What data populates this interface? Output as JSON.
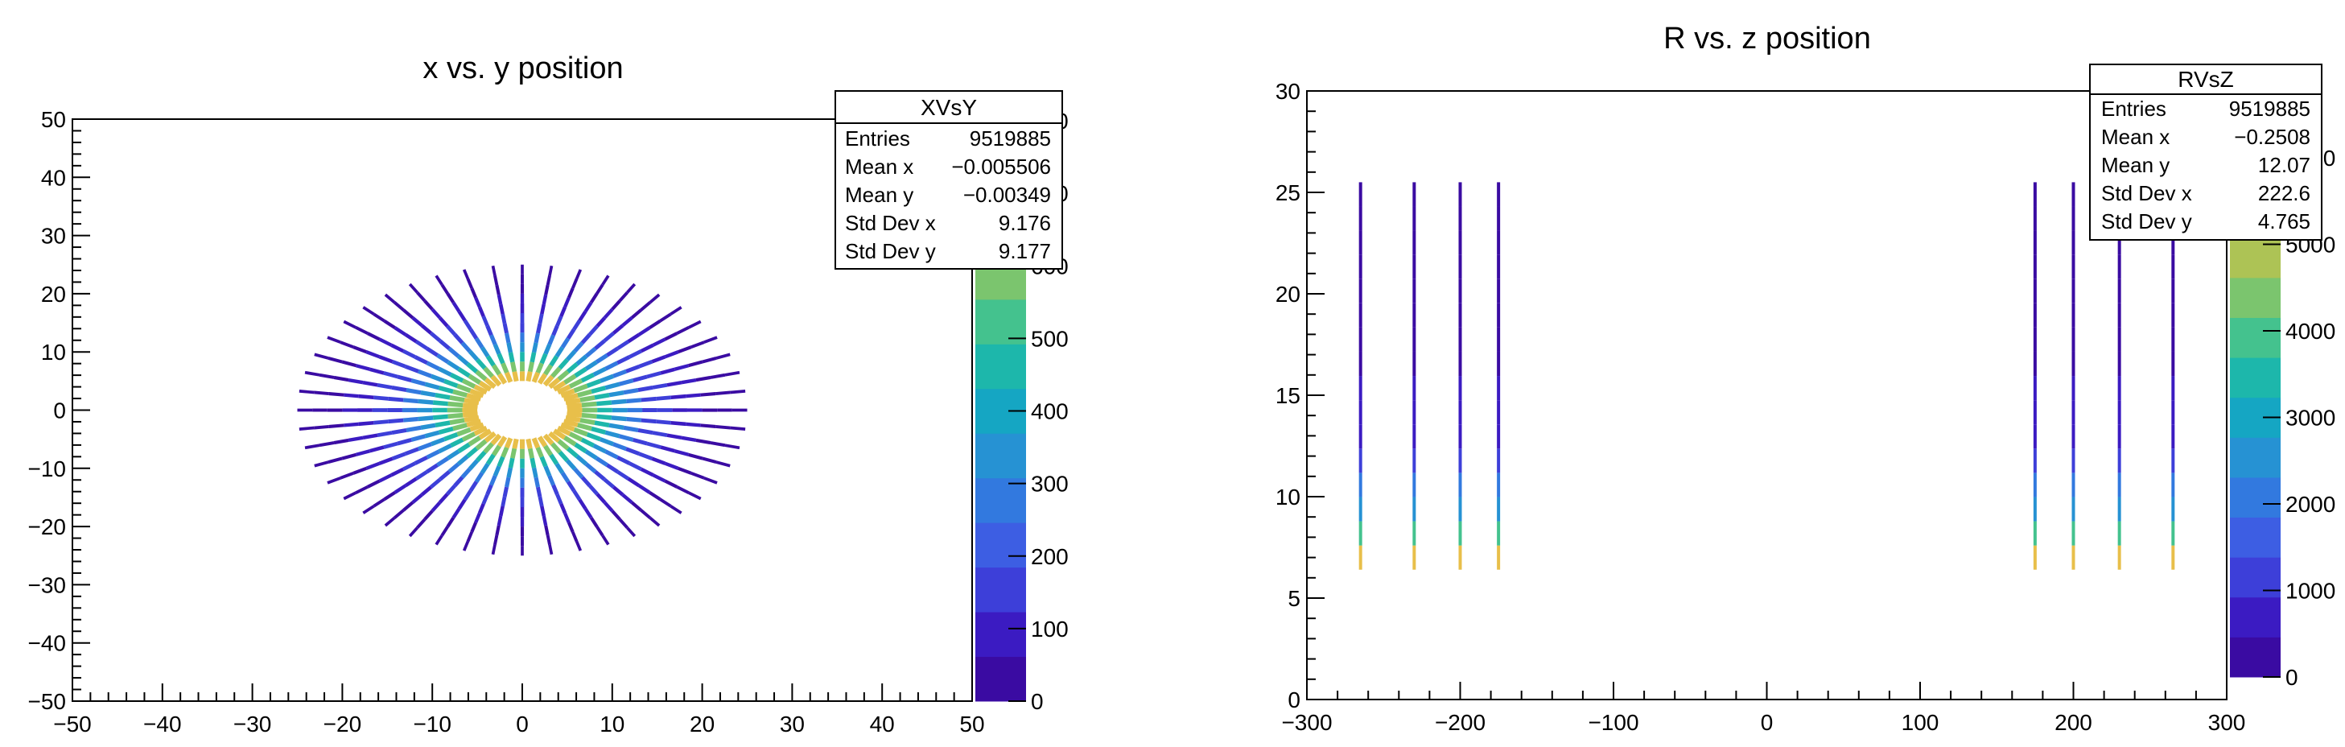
{
  "chart_data": [
    {
      "type": "heatmap",
      "title": "x vs. y position",
      "xlabel": "",
      "ylabel": "",
      "xlim": [
        -50,
        50
      ],
      "ylim": [
        -50,
        50
      ],
      "xticks": [
        -50,
        -40,
        -30,
        -20,
        -10,
        0,
        10,
        20,
        30,
        40,
        50
      ],
      "yticks": [
        -50,
        -40,
        -30,
        -20,
        -10,
        0,
        10,
        20,
        30,
        40,
        50
      ],
      "zticks": [
        0,
        100,
        200,
        300,
        400,
        500,
        600,
        700,
        800
      ],
      "zlim": [
        0,
        800
      ],
      "spokes": 48,
      "r_inner": 5,
      "r_outer": 25,
      "stats": {
        "name": "XVsY",
        "rows": [
          {
            "label": "Entries",
            "value": "9519885"
          },
          {
            "label": "Mean x",
            "value": "−0.005506"
          },
          {
            "label": "Mean y",
            "value": "−0.00349"
          },
          {
            "label": "Std Dev x",
            "value": "9.176"
          },
          {
            "label": "Std Dev y",
            "value": "9.177"
          }
        ]
      }
    },
    {
      "type": "heatmap",
      "title": "R vs. z position",
      "xlabel": "",
      "ylabel": "",
      "xlim": [
        -300,
        300
      ],
      "ylim": [
        0,
        30
      ],
      "xticks": [
        -300,
        -200,
        -100,
        0,
        100,
        200,
        300
      ],
      "yticks": [
        0,
        5,
        10,
        15,
        20,
        25,
        30
      ],
      "zticks": [
        0,
        1000,
        2000,
        3000,
        4000,
        5000,
        6000
      ],
      "zlim": [
        0,
        6000
      ],
      "lines_z": [
        -265,
        -230,
        -200,
        -175,
        175,
        200,
        230,
        265
      ],
      "r_range": [
        6.4,
        25.5
      ],
      "stats": {
        "name": "RVsZ",
        "rows": [
          {
            "label": "Entries",
            "value": "9519885"
          },
          {
            "label": "Mean x",
            "value": "−0.2508"
          },
          {
            "label": "Mean y",
            "value": "12.07"
          },
          {
            "label": "Std Dev x",
            "value": "222.6"
          },
          {
            "label": "Std Dev y",
            "value": "4.765"
          }
        ]
      }
    }
  ],
  "colors": {
    "palette": [
      "#3a0ba2",
      "#3b1bc2",
      "#3d3fd9",
      "#3d5ee3",
      "#3279df",
      "#2692d3",
      "#15a6c3",
      "#1db7ab",
      "#44c28e",
      "#7bc56e",
      "#adc355",
      "#d0bf4e",
      "#e8bf4a"
    ]
  }
}
